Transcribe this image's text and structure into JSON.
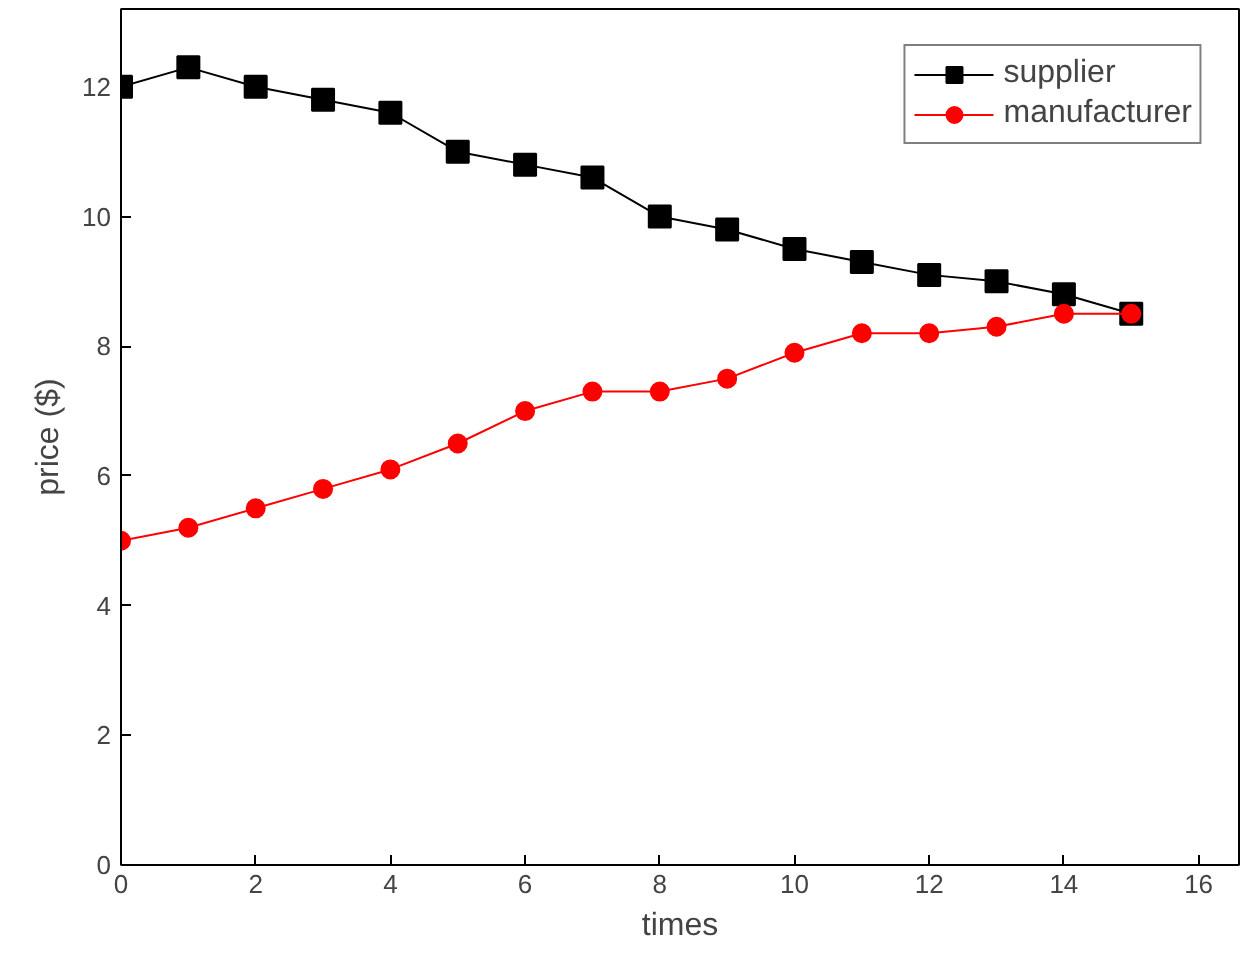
{
  "chart_data": {
    "type": "line",
    "xlabel": "times",
    "ylabel": "price ($)",
    "x": [
      0,
      1,
      2,
      3,
      4,
      5,
      6,
      7,
      8,
      9,
      10,
      11,
      12,
      13,
      14,
      15
    ],
    "series": [
      {
        "name": "supplier",
        "color": "#000000",
        "marker": "square",
        "values": [
          12,
          12.3,
          12,
          11.8,
          11.6,
          11,
          10.8,
          10.6,
          10,
          9.8,
          9.5,
          9.3,
          9.1,
          9.0,
          8.8,
          8.5
        ]
      },
      {
        "name": "manufacturer",
        "color": "#ff0000",
        "marker": "circle",
        "values": [
          5,
          5.2,
          5.5,
          5.8,
          6.1,
          6.5,
          7.0,
          7.3,
          7.3,
          7.5,
          7.9,
          8.2,
          8.2,
          8.3,
          8.5,
          8.5
        ]
      }
    ],
    "xlim": [
      0,
      16.6
    ],
    "ylim": [
      0,
      13.2
    ],
    "xticks": [
      0,
      2,
      4,
      6,
      8,
      10,
      12,
      14,
      16
    ],
    "yticks": [
      0,
      2,
      4,
      6,
      8,
      10,
      12
    ],
    "grid": false,
    "legend": "top right",
    "line_style": "solid"
  }
}
